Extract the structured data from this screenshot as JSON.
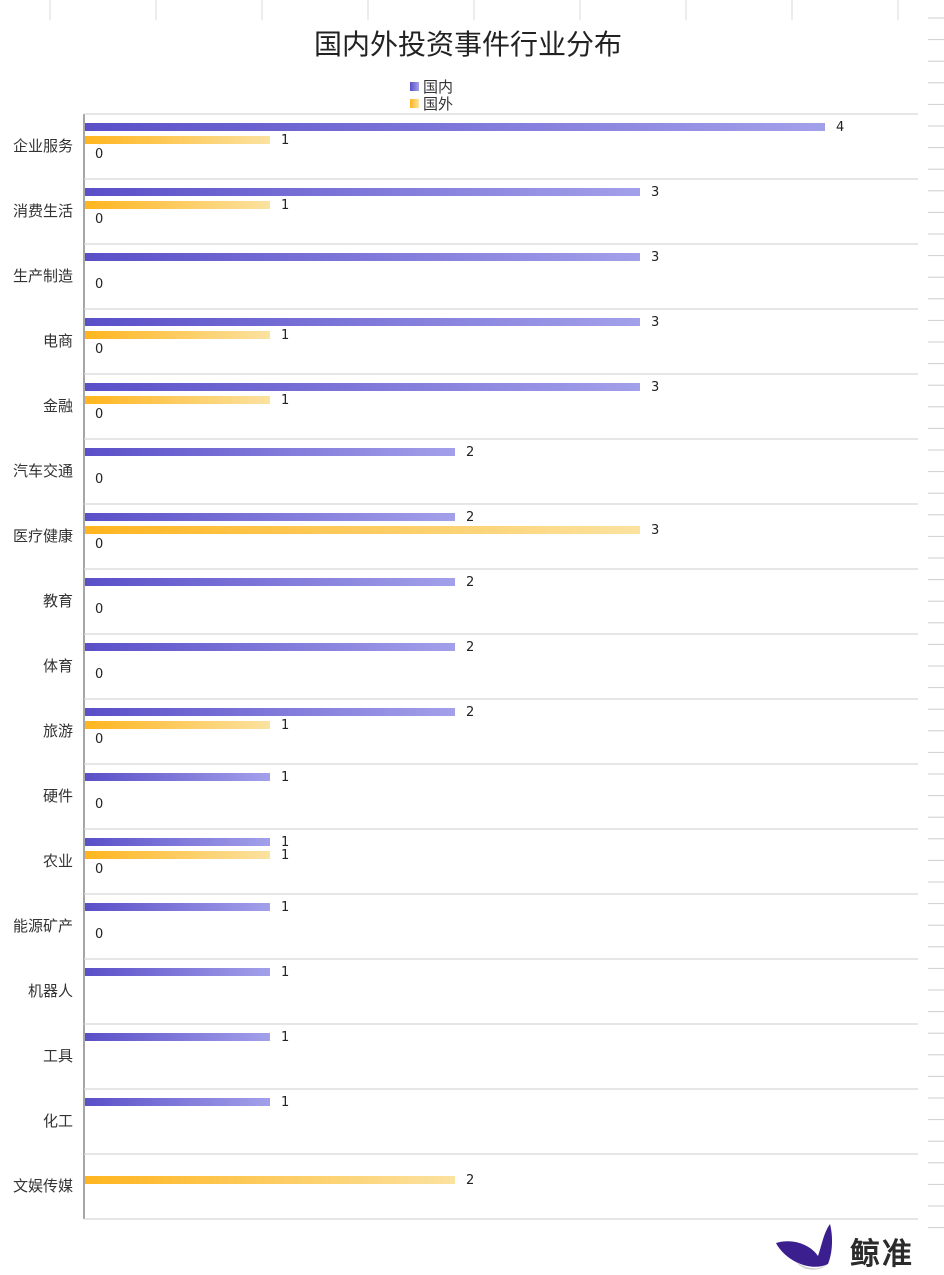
{
  "chart_data": {
    "type": "bar",
    "orientation": "horizontal",
    "title": "国内外投资事件行业分布",
    "categories": [
      "企业服务",
      "消费生活",
      "生产制造",
      "电商",
      "金融",
      "汽车交通",
      "医疗健康",
      "教育",
      "体育",
      "旅游",
      "硬件",
      "农业",
      "能源矿产",
      "机器人",
      "工具",
      "化工",
      "文娱传媒"
    ],
    "series": [
      {
        "name": "国内",
        "color": "#5a4fc8",
        "color_end": "#a3a0ea",
        "values": [
          4,
          3,
          3,
          3,
          3,
          2,
          2,
          2,
          2,
          2,
          1,
          1,
          1,
          1,
          1,
          1,
          null
        ]
      },
      {
        "name": "国外",
        "color": "#ffb51f",
        "color_end": "#fbe2a0",
        "values": [
          1,
          1,
          null,
          1,
          1,
          null,
          3,
          null,
          null,
          1,
          null,
          1,
          null,
          null,
          null,
          null,
          2
        ]
      }
    ],
    "extra_labels": [
      "0",
      "0",
      "0",
      "0",
      "0",
      "0",
      "0",
      "0",
      "0",
      "0",
      "0",
      "0",
      "0",
      null,
      null,
      null,
      null
    ],
    "xlim": [
      0,
      4.5
    ],
    "legend_position": "top-center",
    "grid": "horizontal separators between categories"
  },
  "brand": {
    "name": "鲸准",
    "icon": "whale-logo-icon"
  }
}
